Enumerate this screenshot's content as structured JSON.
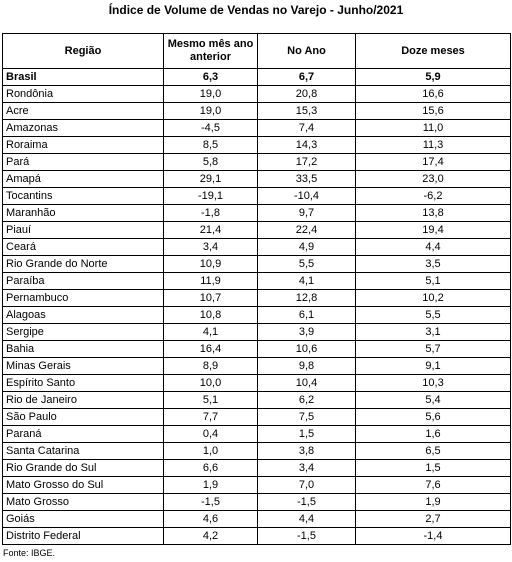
{
  "header": {
    "title": "Índice de Volume de Vendas no Varejo - Junho/2021"
  },
  "table": {
    "columns": [
      "Região",
      "Mesmo mês ano anterior",
      "No Ano",
      "Doze meses"
    ],
    "rows": [
      [
        "Brasil",
        "6,3",
        "6,7",
        "5,9"
      ],
      [
        "Rondônia",
        "19,0",
        "20,8",
        "16,6"
      ],
      [
        "Acre",
        "19,0",
        "15,3",
        "15,6"
      ],
      [
        "Amazonas",
        "-4,5",
        "7,4",
        "11,0"
      ],
      [
        "Roraima",
        "8,5",
        "14,3",
        "11,3"
      ],
      [
        "Pará",
        "5,8",
        "17,2",
        "17,4"
      ],
      [
        "Amapá",
        "29,1",
        "33,5",
        "23,0"
      ],
      [
        "Tocantins",
        "-19,1",
        "-10,4",
        "-6,2"
      ],
      [
        "Maranhão",
        "-1,8",
        "9,7",
        "13,8"
      ],
      [
        "Piauí",
        "21,4",
        "22,4",
        "19,4"
      ],
      [
        "Ceará",
        "3,4",
        "4,9",
        "4,4"
      ],
      [
        "Rio Grande do Norte",
        "10,9",
        "5,5",
        "3,5"
      ],
      [
        "Paraíba",
        "11,9",
        "4,1",
        "5,1"
      ],
      [
        "Pernambuco",
        "10,7",
        "12,8",
        "10,2"
      ],
      [
        "Alagoas",
        "10,8",
        "6,1",
        "5,5"
      ],
      [
        "Sergipe",
        "4,1",
        "3,9",
        "3,1"
      ],
      [
        "Bahia",
        "16,4",
        "10,6",
        "5,7"
      ],
      [
        "Minas Gerais",
        "8,9",
        "9,8",
        "9,1"
      ],
      [
        "Espírito Santo",
        "10,0",
        "10,4",
        "10,3"
      ],
      [
        "Rio de Janeiro",
        "5,1",
        "6,2",
        "5,4"
      ],
      [
        "São Paulo",
        "7,7",
        "7,5",
        "5,6"
      ],
      [
        "Paraná",
        "0,4",
        "1,5",
        "1,6"
      ],
      [
        "Santa Catarina",
        "1,0",
        "3,8",
        "6,5"
      ],
      [
        "Rio Grande do Sul",
        "6,6",
        "3,4",
        "1,5"
      ],
      [
        "Mato Grosso do Sul",
        "1,9",
        "7,0",
        "7,6"
      ],
      [
        "Mato Grosso",
        "-1,5",
        "-1,5",
        "1,9"
      ],
      [
        "Goiás",
        "4,6",
        "4,4",
        "2,7"
      ],
      [
        "Distrito Federal",
        "4,2",
        "-1,5",
        "-1,4"
      ]
    ]
  },
  "footer": {
    "source": "Fonte: IBGE."
  }
}
